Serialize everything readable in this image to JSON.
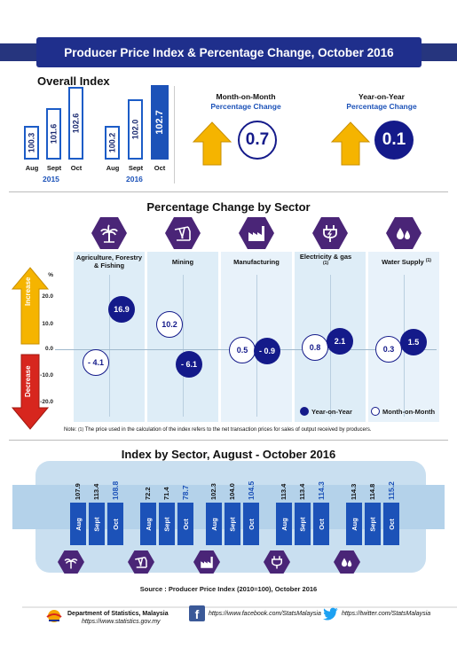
{
  "header": {
    "title": "Producer Price Index & Percentage Change, October 2016"
  },
  "overall": {
    "title": "Overall Index",
    "y2015": {
      "label": "2015",
      "bars": [
        {
          "month": "Aug",
          "value": "100.3"
        },
        {
          "month": "Sept",
          "value": "101.6"
        },
        {
          "month": "Oct",
          "value": "102.6"
        }
      ]
    },
    "y2016": {
      "label": "2016",
      "bars": [
        {
          "month": "Aug",
          "value": "100.2"
        },
        {
          "month": "Sept",
          "value": "102.0"
        },
        {
          "month": "Oct",
          "value": "102.7"
        }
      ]
    },
    "mom": {
      "title": "Month-on-Month",
      "sub": "Percentage Change",
      "value": "0.7"
    },
    "yoy": {
      "title": "Year-on-Year",
      "sub": "Percentage Change",
      "value": "0.1"
    }
  },
  "sector_chart": {
    "title": "Percentage Change by Sector",
    "unit": "%",
    "ticks": [
      "20.0",
      "10.0",
      "0.0",
      "-10.0",
      "-20.0"
    ],
    "increase_label": "Increase",
    "decrease_label": "Decrease",
    "sectors": [
      {
        "name": "Agriculture, Forestry & Fishing",
        "icon": "palm-tree-icon",
        "yoy": "16.9",
        "mom": "- 4.1"
      },
      {
        "name": "Mining",
        "icon": "oil-pump-icon",
        "yoy": "- 6.1",
        "mom": "10.2"
      },
      {
        "name": "Manufacturing",
        "icon": "factory-icon",
        "yoy": "- 0.9",
        "mom": "0.5"
      },
      {
        "name": "Electricity & gas",
        "icon": "plug-icon",
        "yoy": "2.1",
        "mom": "0.8",
        "sup": "(1)"
      },
      {
        "name": "Water Supply",
        "icon": "water-drops-icon",
        "yoy": "1.5",
        "mom": "0.3",
        "sup": "(1)"
      }
    ],
    "legend": {
      "yoy": "Year-on-Year",
      "mom": "Month-on-Month"
    },
    "note_prefix": "Note:",
    "note_sup": "(1)",
    "note": "The price used in the calculation of the index refers to the net transaction prices for sales of output received by producers."
  },
  "index_by_sector": {
    "title": "Index by Sector, August - October 2016",
    "groups": [
      {
        "icon": "palm-tree-icon",
        "bars": [
          {
            "month": "Aug",
            "value": "107.9"
          },
          {
            "month": "Sept",
            "value": "113.4"
          },
          {
            "month": "Oct",
            "value": "108.8"
          }
        ]
      },
      {
        "icon": "oil-pump-icon",
        "bars": [
          {
            "month": "Aug",
            "value": "72.2"
          },
          {
            "month": "Sept",
            "value": "71.4"
          },
          {
            "month": "Oct",
            "value": "78.7"
          }
        ]
      },
      {
        "icon": "factory-icon",
        "bars": [
          {
            "month": "Aug",
            "value": "102.3"
          },
          {
            "month": "Sept",
            "value": "104.0"
          },
          {
            "month": "Oct",
            "value": "104.5"
          }
        ]
      },
      {
        "icon": "plug-icon",
        "bars": [
          {
            "month": "Aug",
            "value": "113.4"
          },
          {
            "month": "Sept",
            "value": "113.4"
          },
          {
            "month": "Oct",
            "value": "114.3"
          }
        ]
      },
      {
        "icon": "water-drops-icon",
        "bars": [
          {
            "month": "Aug",
            "value": "114.3"
          },
          {
            "month": "Sept",
            "value": "114.8"
          },
          {
            "month": "Oct",
            "value": "115.2"
          }
        ]
      }
    ],
    "source": "Source :  Producer Price Index (2010=100), October 2016"
  },
  "footer": {
    "dept": "Department of Statistics, Malaysia",
    "dept_url": "https://www.statistics.gov.my",
    "facebook": "https://www.facebook.com/StatsMalaysia",
    "twitter": "https://twitter.com/StatsMalaysia"
  },
  "colors": {
    "navy": "#1f2f8c",
    "blue": "#1c52b8",
    "purple": "#4a2577",
    "arrow_up": "#f5b400",
    "arrow_down": "#d7261e",
    "panel": "#deedf7"
  }
}
